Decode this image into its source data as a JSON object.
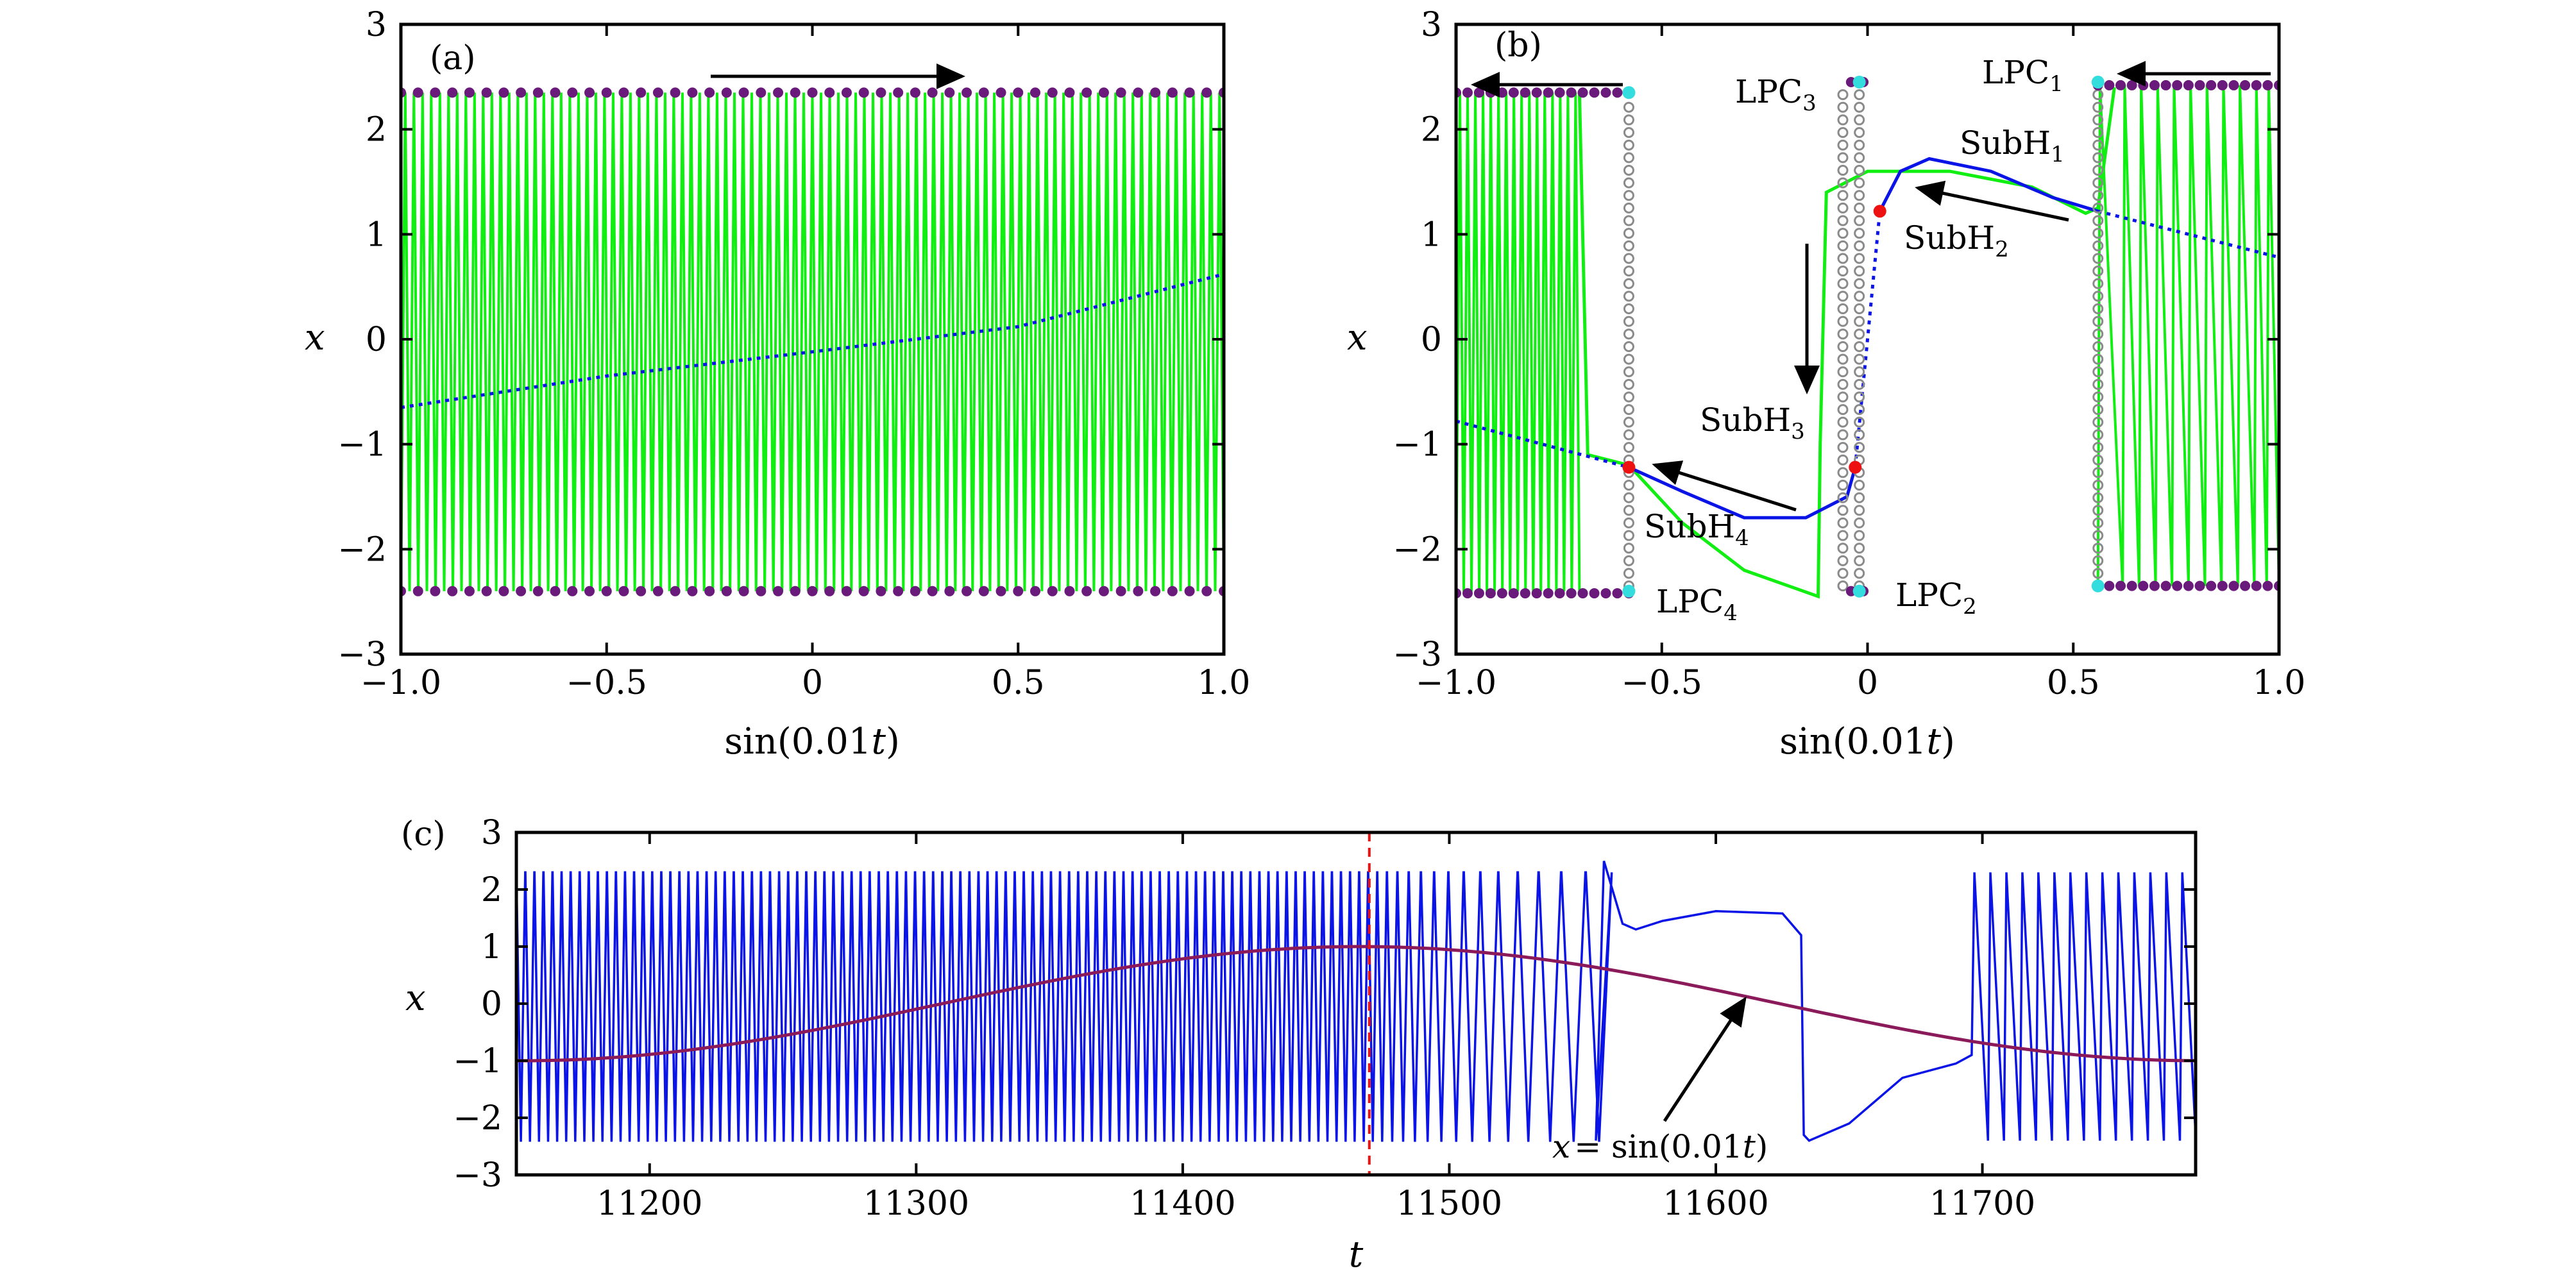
{
  "colors": {
    "green": "#11ee11",
    "blue": "#0a14e6",
    "purple": "#6a1a7a",
    "cyan": "#33dddd",
    "gray": "#8a8a8a",
    "red": "#ee1111",
    "darkred": "#8a1a5a"
  },
  "chart_data": [
    {
      "type": "line",
      "panel": "(a)",
      "xlabel": "sin(0.01t)",
      "ylabel": "x",
      "xlim": [
        -1.0,
        1.0
      ],
      "ylim": [
        -3,
        3
      ],
      "xticks": [
        "−1.0",
        "−0.5",
        "0",
        "0.5",
        "1.0"
      ],
      "yticks": [
        "3",
        "2",
        "1",
        "0",
        "−1",
        "−2",
        "−3"
      ],
      "series": [
        {
          "role": "fast oscillation",
          "color": "green",
          "amplitude_upper": 2.35,
          "amplitude_lower": -2.4,
          "cycles": 95
        },
        {
          "role": "unstable equilibrium (dotted)",
          "color": "blue",
          "x": [
            -1.0,
            -0.5,
            0.0,
            0.5,
            1.0
          ],
          "y": [
            -0.65,
            -0.35,
            -0.12,
            0.12,
            0.62
          ]
        },
        {
          "role": "max/min of limit cycle",
          "color": "purple",
          "upper": 2.35,
          "lower": -2.4
        }
      ],
      "arrow": {
        "direction": "right",
        "from_x": -0.25,
        "to_x": 0.38,
        "y": 2.5
      }
    },
    {
      "type": "line",
      "panel": "(b)",
      "xlabel": "sin(0.01t)",
      "ylabel": "x",
      "xlim": [
        -1.0,
        1.0
      ],
      "ylim": [
        -3,
        3
      ],
      "xticks": [
        "−1.0",
        "−0.5",
        "0",
        "0.5",
        "1.0"
      ],
      "yticks": [
        "3",
        "2",
        "1",
        "0",
        "−1",
        "−2",
        "−3"
      ],
      "annotations": {
        "LPC1": {
          "base": "LPC",
          "sub": "1"
        },
        "LPC2": {
          "base": "LPC",
          "sub": "2"
        },
        "LPC3": {
          "base": "LPC",
          "sub": "3"
        },
        "LPC4": {
          "base": "LPC",
          "sub": "4"
        },
        "SubH1": {
          "base": "SubH",
          "sub": "1"
        },
        "SubH2": {
          "base": "SubH",
          "sub": "2"
        },
        "SubH3": {
          "base": "SubH",
          "sub": "3"
        },
        "SubH4": {
          "base": "SubH",
          "sub": "4"
        }
      },
      "bifurcation_points": {
        "LPC1": [
          0.56,
          2.45
        ],
        "LPC2": [
          -0.02,
          -2.4
        ],
        "LPC3": [
          -0.02,
          2.45
        ],
        "LPC4": [
          -0.58,
          -2.4
        ],
        "SubH2": [
          0.03,
          1.22
        ],
        "SubH3": [
          -0.03,
          -1.22
        ],
        "SubH4": [
          -0.58,
          -1.22
        ]
      },
      "blue_equilibrium": {
        "x": [
          -1.0,
          -0.58,
          0.03,
          0.56,
          1.0
        ],
        "y": [
          -0.78,
          -1.22,
          1.22,
          1.22,
          0.78
        ]
      }
    },
    {
      "type": "line",
      "panel": "(c)",
      "xlabel": "t",
      "ylabel": "x",
      "xlim": [
        11150,
        11780
      ],
      "ylim": [
        -3,
        3
      ],
      "xticks": [
        "11200",
        "11300",
        "11400",
        "11500",
        "11600",
        "11700"
      ],
      "xtick_values": [
        11200,
        11300,
        11400,
        11500,
        11600,
        11700
      ],
      "yticks": [
        "3",
        "2",
        "1",
        "0",
        "−1",
        "−2",
        "−3"
      ],
      "series": [
        {
          "role": "x(t)",
          "color": "blue",
          "quiescent_window": [
            11560,
            11700
          ],
          "upper": 2.3,
          "lower": -2.4
        },
        {
          "name": "x = sin(0.01t)",
          "color": "darkred",
          "function": "sin(0.01t)"
        }
      ],
      "vline": {
        "t": 11470,
        "color": "red",
        "style": "dashed"
      },
      "annotation": {
        "prefix": "x",
        "text": "= sin(0.01",
        "var": "t",
        "suffix": ")",
        "points_to": [
          11620,
          0.1
        ]
      }
    }
  ],
  "labels": {
    "a_panel": "(a)",
    "b_panel": "(b)",
    "c_panel": "(c)",
    "a_xlabel_fn": "sin(0.01",
    "a_xlabel_var": "t",
    "a_xlabel_end": ")",
    "c_xlabel": "t",
    "ylabel": "x"
  }
}
